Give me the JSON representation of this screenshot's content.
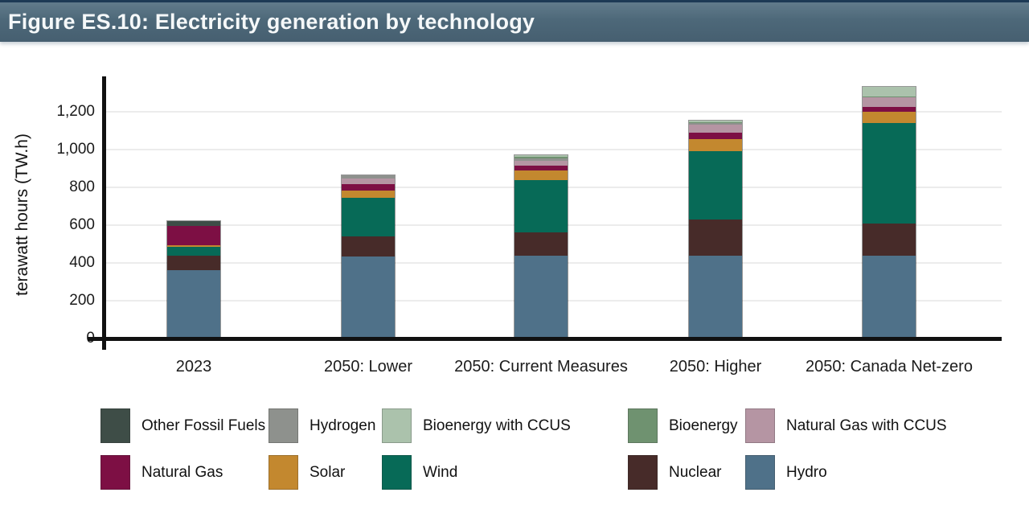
{
  "header": {
    "title": "Figure ES.10: Electricity generation by technology",
    "background_color": "#4d6879",
    "text_color": "#f5f8f9"
  },
  "chart_data": {
    "type": "bar",
    "stacked": true,
    "title": "Figure ES.10: Electricity generation by technology",
    "ylabel": "terawatt hours (TW.h)",
    "xlabel": "",
    "unit": "TW.h",
    "ylim": [
      0,
      1300
    ],
    "grid": true,
    "legend_position": "bottom",
    "yticks": [
      {
        "value": 0,
        "label": "0"
      },
      {
        "value": 200,
        "label": "200"
      },
      {
        "value": 400,
        "label": "400"
      },
      {
        "value": 600,
        "label": "600"
      },
      {
        "value": 800,
        "label": "800"
      },
      {
        "value": 1000,
        "label": "1,000"
      },
      {
        "value": 1200,
        "label": "1,200"
      }
    ],
    "categories": [
      "2023",
      "2050: Lower",
      "2050: Current Measures",
      "2050: Higher",
      "2050: Canada Net-zero"
    ],
    "series": [
      {
        "name": "Hydro",
        "color": "#4f7189",
        "values": [
          360,
          435,
          440,
          440,
          440
        ]
      },
      {
        "name": "Nuclear",
        "color": "#472b29",
        "values": [
          80,
          105,
          120,
          190,
          170
        ]
      },
      {
        "name": "Wind",
        "color": "#076a57",
        "values": [
          45,
          205,
          280,
          360,
          530
        ]
      },
      {
        "name": "Solar",
        "color": "#c3882f",
        "values": [
          10,
          40,
          50,
          65,
          60
        ]
      },
      {
        "name": "Natural Gas",
        "color": "#7d0f44",
        "values": [
          100,
          30,
          25,
          35,
          25
        ]
      },
      {
        "name": "Other Fossil Fuels",
        "color": "#3e4d47",
        "values": [
          25,
          0,
          0,
          0,
          0
        ]
      },
      {
        "name": "Natural Gas with CCUS",
        "color": "#b595a3",
        "values": [
          0,
          30,
          25,
          40,
          50
        ]
      },
      {
        "name": "Hydrogen",
        "color": "#8e918d",
        "values": [
          0,
          20,
          15,
          10,
          0
        ]
      },
      {
        "name": "Bioenergy",
        "color": "#6f9270",
        "values": [
          0,
          0,
          5,
          5,
          5
        ]
      },
      {
        "name": "Bioenergy with CCUS",
        "color": "#abc2ac",
        "values": [
          0,
          0,
          10,
          10,
          50
        ]
      }
    ],
    "totals": [
      620,
      865,
      970,
      1155,
      1330
    ],
    "legend_rows": [
      [
        "Other Fossil Fuels",
        "Hydrogen",
        "Bioenergy with CCUS",
        "Bioenergy",
        "Natural Gas with CCUS"
      ],
      [
        "Natural Gas",
        "Solar",
        "Wind",
        "Nuclear",
        "Hydro"
      ]
    ]
  }
}
